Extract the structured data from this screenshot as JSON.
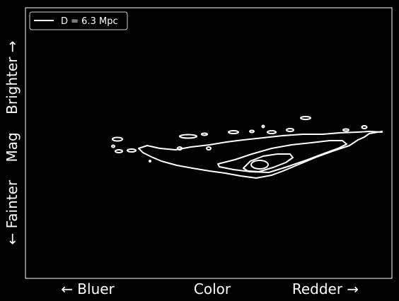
{
  "chart_data": {
    "type": "contour",
    "title": "",
    "xlabel": {
      "left": "← Bluer",
      "center": "Color",
      "right": "Redder →"
    },
    "ylabel": "← Fainter    Mag    Brighter →",
    "ticks": "none",
    "grid": false,
    "legend": {
      "placement": "top-left",
      "entries": [
        {
          "label": "D = 6.3 Mpc",
          "color": "#ffffff"
        }
      ]
    },
    "series": [
      {
        "name": "D = 6.3 Mpc",
        "kind": "density-contours",
        "levels": [
          "outer",
          "middle",
          "inner",
          "innermost"
        ],
        "color": "#ffffff"
      }
    ]
  },
  "colors": {
    "background": "#000000",
    "foreground": "#ffffff"
  }
}
